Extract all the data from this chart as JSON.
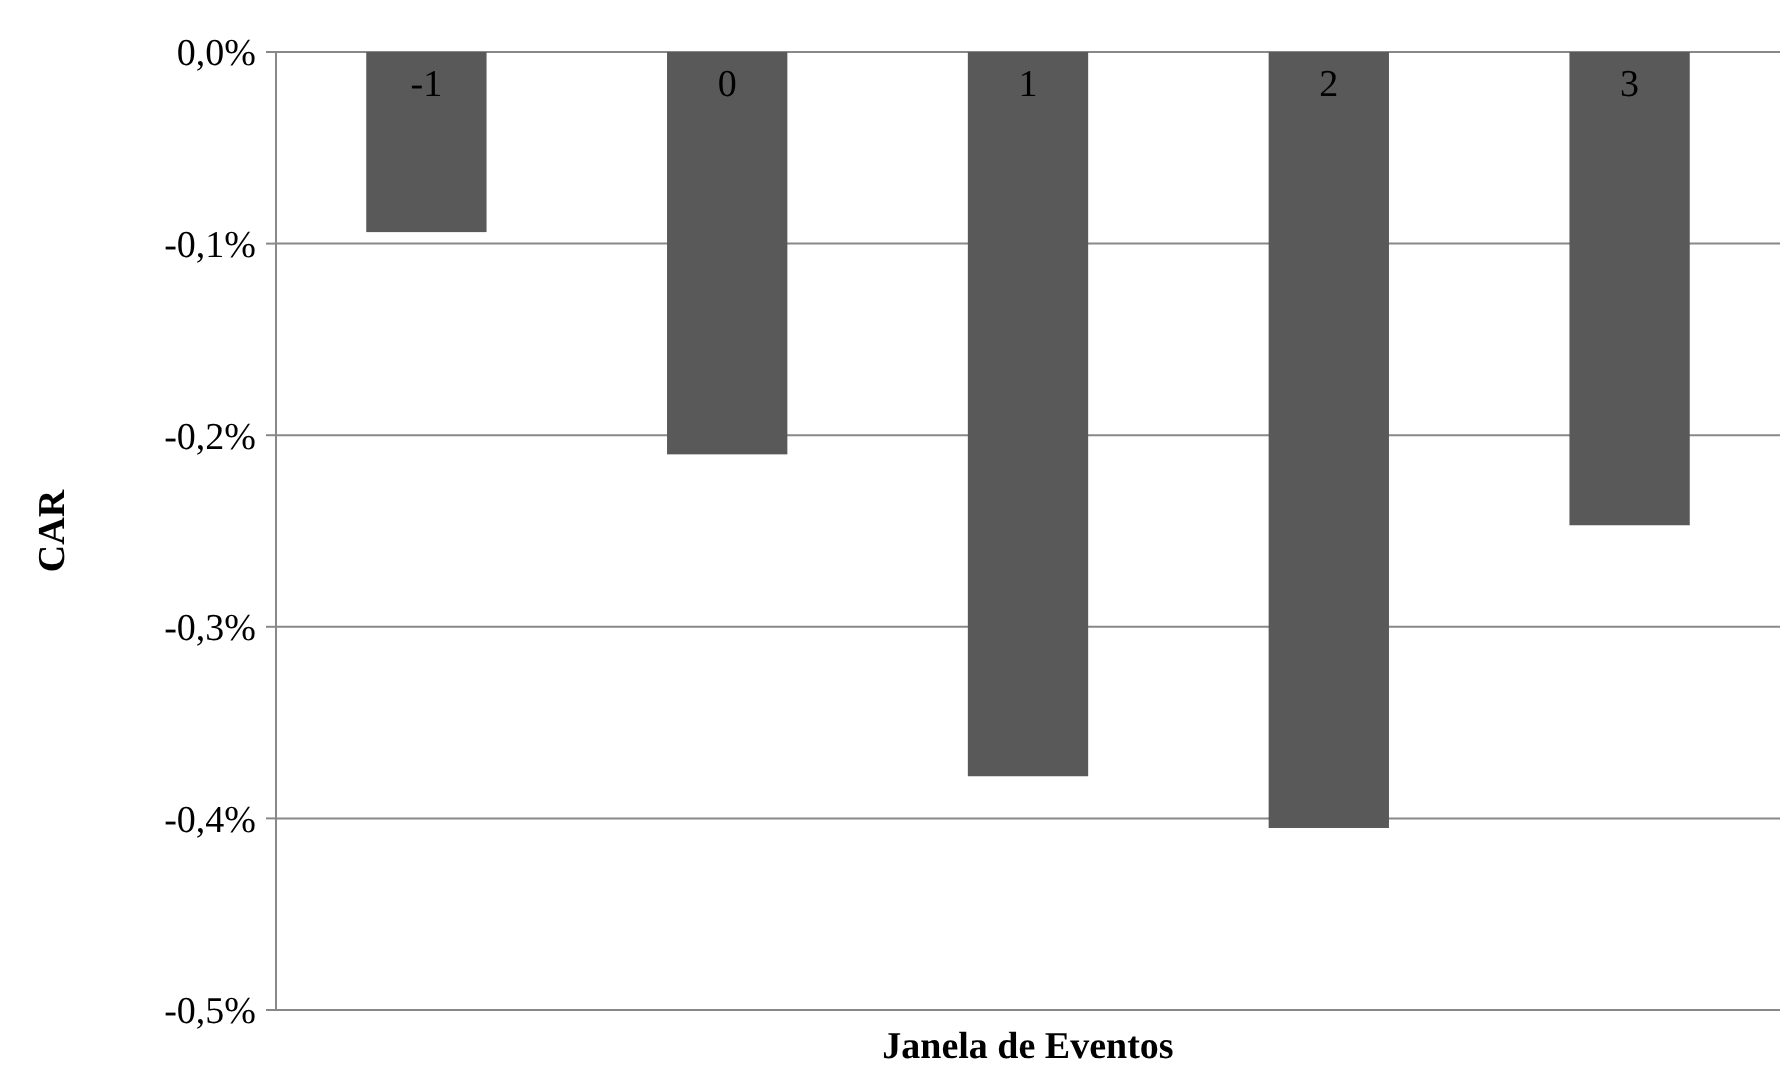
{
  "chart_data": {
    "type": "bar",
    "xlabel": "Janela de Eventos",
    "ylabel": "CAR",
    "categories": [
      "-1",
      "0",
      "1",
      "2",
      "3"
    ],
    "values": [
      -0.094,
      -0.21,
      -0.378,
      -0.405,
      -0.247
    ],
    "color": "#595959",
    "ylim": [
      -0.5,
      0
    ],
    "yticks": [
      {
        "value": 0,
        "label": "0,0%"
      },
      {
        "value": -0.1,
        "label": "-0,1%"
      },
      {
        "value": -0.2,
        "label": "-0,2%"
      },
      {
        "value": -0.3,
        "label": "-0,3%"
      },
      {
        "value": -0.4,
        "label": "-0,4%"
      },
      {
        "value": -0.5,
        "label": "-0,5%"
      }
    ],
    "grid": "y"
  }
}
